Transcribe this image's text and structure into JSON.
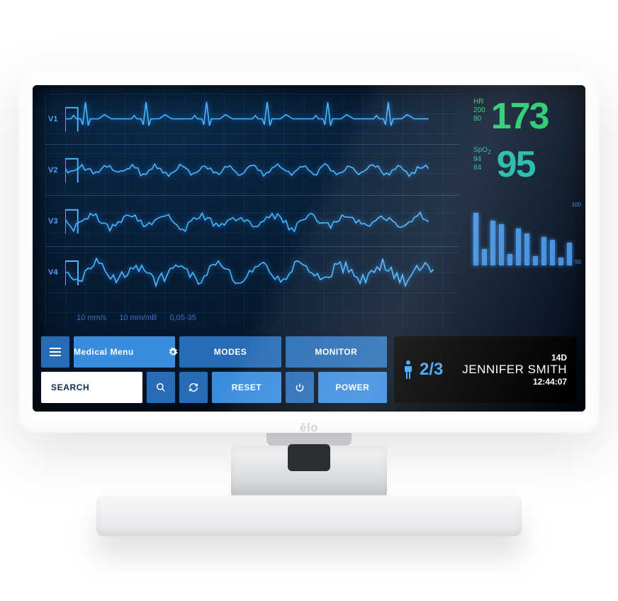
{
  "device": {
    "brand": "ēlo"
  },
  "colors": {
    "hr": "#1ec96a",
    "spo2": "#17b8a6",
    "waveform": "#49b6ff",
    "waveform_glow": "#1d7fd6",
    "grid": "#2276c6",
    "button_primary": "#3a8dde",
    "button_dim": "#276db5",
    "screen_bg": "#06172c",
    "bar": "#3d8ee0",
    "patient_accent": "#3ba7ff"
  },
  "waveforms": {
    "leads": [
      {
        "label": "V1",
        "type": "ecg",
        "amplitude": 24,
        "cycles": 6
      },
      {
        "label": "V2",
        "type": "noise",
        "amplitude": 7,
        "cycles": 30
      },
      {
        "label": "V3",
        "type": "noise",
        "amplitude": 10,
        "cycles": 20
      },
      {
        "label": "V4",
        "type": "noise",
        "amplitude": 14,
        "cycles": 18
      }
    ]
  },
  "hr": {
    "label": "HR",
    "high": "200",
    "low": "80",
    "value": "173"
  },
  "spo2": {
    "label": "SpO",
    "sub": "2",
    "high": "94",
    "low": "84",
    "value": "95"
  },
  "bars": {
    "values": [
      82,
      26,
      70,
      64,
      18,
      58,
      50,
      14,
      44,
      40,
      12,
      36
    ],
    "scale_top": "100",
    "scale_bottom": "50"
  },
  "scale": {
    "speed": "10 mm/s",
    "gain": "10 mm/mB",
    "filter": "0,05-35"
  },
  "toolbar": {
    "menu_label": "Medical Menu",
    "modes_label": "MODES",
    "monitor_label": "MONITOR",
    "reset_label": "RESET",
    "power_label": "POWER",
    "search_placeholder": "SEARCH"
  },
  "patient": {
    "count": "2/3",
    "room": "14D",
    "name": "JENNIFER SMITH",
    "time": "12:44:07"
  }
}
